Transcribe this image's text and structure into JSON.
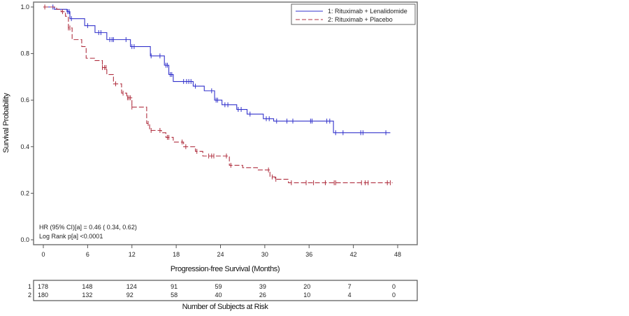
{
  "chart_data": {
    "type": "line",
    "subtype": "kaplan-meier",
    "title": "",
    "xlabel": "Progression-free Survival (Months)",
    "ylabel": "Survival Probability",
    "xlim": [
      0,
      48
    ],
    "ylim": [
      0.0,
      1.0
    ],
    "x_ticks": [
      "0",
      "6",
      "12",
      "18",
      "24",
      "30",
      "36",
      "42",
      "48"
    ],
    "x_tick_values": [
      0,
      6,
      12,
      18,
      24,
      30,
      36,
      42,
      48
    ],
    "y_ticks": [
      "0.0",
      "0.2",
      "0.4",
      "0.6",
      "0.8",
      "1.0"
    ],
    "y_tick_values": [
      0.0,
      0.2,
      0.4,
      0.6,
      0.8,
      1.0
    ],
    "grid": false,
    "legend_position": "top-right",
    "series": [
      {
        "name": "1: Rituximab + Lenalidomide",
        "color": "#3333cc",
        "line_style": "solid",
        "steps": [
          [
            0,
            1.0
          ],
          [
            1.5,
            0.99
          ],
          [
            3.2,
            0.98
          ],
          [
            3.6,
            0.95
          ],
          [
            5.6,
            0.92
          ],
          [
            7.0,
            0.89
          ],
          [
            8.6,
            0.86
          ],
          [
            11.8,
            0.83
          ],
          [
            14.5,
            0.79
          ],
          [
            16.4,
            0.75
          ],
          [
            17.0,
            0.71
          ],
          [
            17.6,
            0.68
          ],
          [
            20.3,
            0.66
          ],
          [
            21.8,
            0.64
          ],
          [
            23.2,
            0.6
          ],
          [
            24.2,
            0.58
          ],
          [
            26.2,
            0.56
          ],
          [
            27.6,
            0.54
          ],
          [
            29.8,
            0.52
          ],
          [
            31.2,
            0.51
          ],
          [
            39.3,
            0.46
          ]
        ],
        "end": 47.0,
        "censor_times": [
          1.3,
          3.3,
          3.5,
          3.8,
          6.0,
          7.5,
          7.8,
          9.0,
          9.3,
          9.5,
          11.2,
          12.0,
          12.3,
          14.6,
          15.8,
          16.6,
          16.8,
          17.2,
          17.4,
          19.0,
          19.4,
          19.7,
          20.0,
          20.6,
          22.8,
          23.4,
          23.6,
          24.6,
          25.0,
          26.4,
          26.8,
          28.0,
          30.2,
          30.6,
          31.6,
          33.0,
          33.8,
          36.2,
          36.4,
          38.4,
          38.8,
          39.6,
          40.6,
          43.0,
          43.3,
          46.4
        ]
      },
      {
        "name": "2: Rituximab + Placebo",
        "color": "#b03040",
        "line_style": "dashed",
        "steps": [
          [
            0,
            1.0
          ],
          [
            1.8,
            0.99
          ],
          [
            2.4,
            0.98
          ],
          [
            3.0,
            0.96
          ],
          [
            3.4,
            0.91
          ],
          [
            3.9,
            0.86
          ],
          [
            5.2,
            0.83
          ],
          [
            5.8,
            0.78
          ],
          [
            7.0,
            0.77
          ],
          [
            8.0,
            0.74
          ],
          [
            8.6,
            0.71
          ],
          [
            9.5,
            0.67
          ],
          [
            10.6,
            0.63
          ],
          [
            11.3,
            0.61
          ],
          [
            12.0,
            0.57
          ],
          [
            14.0,
            0.5
          ],
          [
            14.4,
            0.47
          ],
          [
            16.0,
            0.46
          ],
          [
            16.6,
            0.44
          ],
          [
            17.6,
            0.42
          ],
          [
            19.0,
            0.4
          ],
          [
            20.6,
            0.38
          ],
          [
            21.6,
            0.36
          ],
          [
            25.2,
            0.32
          ],
          [
            27.0,
            0.31
          ],
          [
            29.0,
            0.3
          ],
          [
            30.7,
            0.27
          ],
          [
            31.4,
            0.26
          ],
          [
            33.2,
            0.245
          ]
        ],
        "end": 47.3,
        "censor_times": [
          0.2,
          2.6,
          3.4,
          3.6,
          8.0,
          8.3,
          8.5,
          9.8,
          10.8,
          11.4,
          11.6,
          11.8,
          12.0,
          14.2,
          14.6,
          15.8,
          16.8,
          17.0,
          18.8,
          19.3,
          20.8,
          22.4,
          22.8,
          23.1,
          24.8,
          25.4,
          30.5,
          31.0,
          31.5,
          33.6,
          35.6,
          36.6,
          38.2,
          39.4,
          39.6,
          43.1,
          43.6,
          44.0,
          46.6,
          47.0
        ]
      }
    ],
    "annotations": [
      "HR (95% CI)[a] =  0.46 ( 0.34,  0.62)",
      "Log Rank p[a] <0.0001"
    ],
    "risk_table": {
      "title": "Number of Subjects at Risk",
      "times": [
        0,
        6,
        12,
        18,
        24,
        30,
        36,
        42,
        48
      ],
      "rows": [
        {
          "label": "1",
          "values": [
            "178",
            "148",
            "124",
            "91",
            "59",
            "39",
            "20",
            "7",
            "0"
          ]
        },
        {
          "label": "2",
          "values": [
            "180",
            "132",
            "92",
            "58",
            "40",
            "26",
            "10",
            "4",
            "0"
          ]
        }
      ]
    }
  }
}
